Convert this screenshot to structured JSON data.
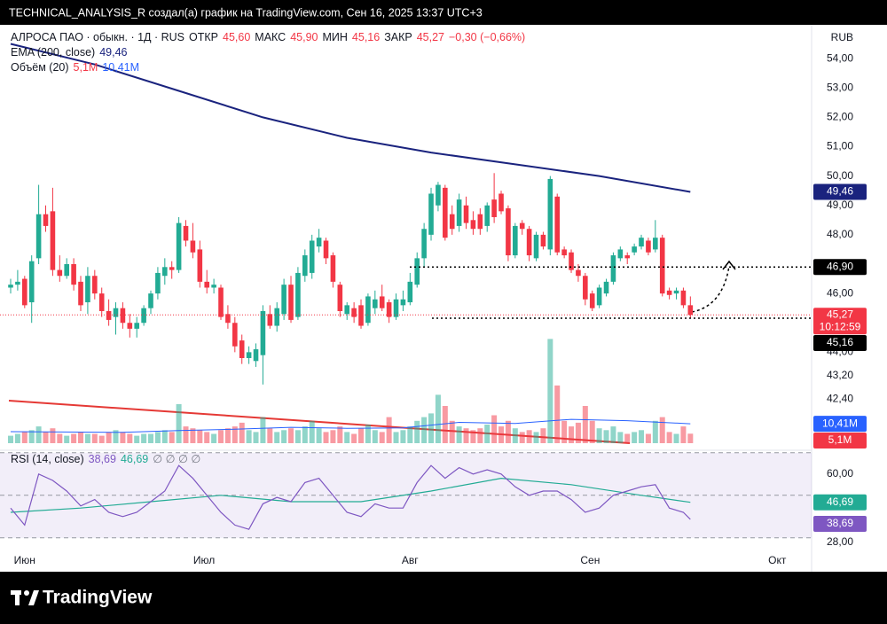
{
  "chart_data": {
    "type": "candlestick",
    "caption": "TECHNICAL_ANALYSIS_R создал(а) график на TradingView.com, Сен 16, 2025 13:37 UTC+3",
    "symbol": "АЛРОСА ПАО · обыкн. · 1Д · RUS",
    "open_label": "ОТКР",
    "open": "45,60",
    "high_label": "МАКС",
    "high": "45,90",
    "low_label": "МИН",
    "low": "45,16",
    "close_label": "ЗАКР",
    "close": "45,27",
    "change": "−0,30 (−0,66%)",
    "currency": "RUB",
    "countdown": "10:12:59",
    "brand": "TradingView",
    "colors": {
      "up": "#22ab94",
      "down": "#f23645",
      "ema": "#1a237e",
      "volume_ma": "#2962ff",
      "rsi": "#7e57c2",
      "rsi_ma": "#22ab94"
    },
    "xlim": [
      -1.52,
      114.3
    ],
    "xticks": [
      {
        "value": 2,
        "label": "Июн"
      },
      {
        "value": 27.6,
        "label": "Июл"
      },
      {
        "value": 57,
        "label": "Авг"
      },
      {
        "value": 82.7,
        "label": "Сен"
      },
      {
        "value": 109.4,
        "label": "Окт"
      }
    ],
    "ylim": [
      40.6,
      55.15
    ],
    "yticks": [
      {
        "value": 54,
        "label": "54,00"
      },
      {
        "value": 53,
        "label": "53,00"
      },
      {
        "value": 52,
        "label": "52,00"
      },
      {
        "value": 51,
        "label": "51,00"
      },
      {
        "value": 50,
        "label": "50,00"
      },
      {
        "value": 49,
        "label": "49,00"
      },
      {
        "value": 48,
        "label": "48,00"
      },
      {
        "value": 46,
        "label": "46,00"
      },
      {
        "value": 44,
        "label": "44,00"
      },
      {
        "value": 43.2,
        "label": "43,20"
      },
      {
        "value": 42.4,
        "label": "42,40"
      }
    ],
    "ohlc": [
      [
        46.2,
        46.5,
        46.0,
        46.3
      ],
      [
        46.3,
        46.8,
        46.1,
        46.4
      ],
      [
        46.5,
        46.6,
        45.5,
        45.6
      ],
      [
        45.7,
        47.3,
        45.0,
        47.1
      ],
      [
        47.2,
        49.7,
        47.0,
        48.7
      ],
      [
        48.7,
        49.0,
        48.1,
        48.3
      ],
      [
        48.8,
        49.6,
        46.6,
        46.8
      ],
      [
        46.8,
        47.3,
        46.4,
        46.6
      ],
      [
        46.6,
        47.2,
        46.5,
        47.0
      ],
      [
        47.0,
        47.2,
        46.1,
        46.3
      ],
      [
        46.4,
        46.6,
        45.4,
        45.6
      ],
      [
        45.7,
        46.9,
        45.3,
        46.6
      ],
      [
        46.6,
        46.8,
        45.8,
        46.0
      ],
      [
        46.0,
        46.2,
        45.2,
        45.4
      ],
      [
        45.4,
        45.8,
        44.9,
        45.1
      ],
      [
        45.2,
        45.7,
        44.6,
        45.5
      ],
      [
        45.5,
        45.7,
        44.8,
        45.0
      ],
      [
        45.0,
        45.3,
        44.5,
        44.8
      ],
      [
        44.8,
        45.2,
        44.5,
        45.0
      ],
      [
        45.0,
        45.6,
        44.9,
        45.5
      ],
      [
        45.5,
        46.1,
        45.3,
        46.0
      ],
      [
        46.0,
        46.9,
        45.8,
        46.7
      ],
      [
        46.6,
        47.2,
        46.3,
        46.9
      ],
      [
        46.9,
        47.1,
        46.5,
        46.8
      ],
      [
        46.8,
        48.6,
        46.7,
        48.4
      ],
      [
        48.3,
        48.5,
        47.6,
        47.8
      ],
      [
        47.8,
        48.4,
        47.2,
        47.4
      ],
      [
        47.5,
        47.8,
        46.2,
        46.4
      ],
      [
        46.4,
        46.8,
        46.0,
        46.2
      ],
      [
        46.2,
        46.5,
        46.0,
        46.3
      ],
      [
        46.2,
        46.3,
        45.1,
        45.2
      ],
      [
        45.3,
        45.6,
        44.8,
        45.0
      ],
      [
        45.0,
        45.2,
        44.0,
        44.2
      ],
      [
        44.4,
        44.6,
        43.6,
        43.8
      ],
      [
        43.8,
        44.2,
        43.6,
        44.0
      ],
      [
        43.7,
        44.3,
        43.5,
        44.1
      ],
      [
        43.9,
        45.6,
        42.9,
        45.4
      ],
      [
        45.3,
        45.6,
        44.8,
        44.9
      ],
      [
        44.9,
        45.7,
        44.7,
        45.5
      ],
      [
        45.3,
        46.5,
        45.1,
        46.3
      ],
      [
        46.3,
        46.6,
        45.0,
        45.1
      ],
      [
        45.2,
        46.9,
        45.1,
        46.7
      ],
      [
        46.6,
        47.5,
        46.4,
        47.3
      ],
      [
        46.7,
        48.0,
        46.5,
        47.8
      ],
      [
        47.6,
        48.2,
        47.4,
        47.9
      ],
      [
        47.8,
        47.9,
        47.0,
        47.2
      ],
      [
        47.3,
        47.4,
        46.2,
        46.4
      ],
      [
        46.3,
        46.4,
        45.2,
        45.4
      ],
      [
        45.3,
        45.7,
        45.1,
        45.6
      ],
      [
        45.5,
        45.7,
        45.0,
        45.2
      ],
      [
        45.6,
        45.8,
        44.8,
        44.9
      ],
      [
        45.0,
        46.0,
        44.9,
        45.9
      ],
      [
        45.5,
        46.1,
        45.3,
        45.8
      ],
      [
        45.9,
        46.3,
        45.4,
        45.5
      ],
      [
        45.7,
        45.8,
        45.0,
        45.2
      ],
      [
        45.2,
        46.0,
        45.1,
        45.8
      ],
      [
        45.6,
        46.1,
        45.4,
        45.8
      ],
      [
        45.7,
        46.7,
        45.6,
        46.4
      ],
      [
        46.3,
        47.4,
        46.2,
        47.2
      ],
      [
        47.2,
        48.4,
        46.9,
        48.2
      ],
      [
        48.0,
        49.6,
        47.8,
        49.4
      ],
      [
        49.0,
        49.8,
        48.8,
        49.7
      ],
      [
        49.6,
        49.7,
        47.8,
        47.9
      ],
      [
        48.7,
        49.0,
        48.0,
        48.2
      ],
      [
        48.3,
        49.4,
        48.1,
        49.2
      ],
      [
        49.0,
        49.3,
        48.2,
        48.4
      ],
      [
        48.5,
        48.8,
        48.0,
        48.2
      ],
      [
        48.7,
        48.9,
        48.0,
        48.2
      ],
      [
        48.3,
        49.1,
        48.1,
        49.0
      ],
      [
        49.2,
        50.1,
        48.4,
        48.6
      ],
      [
        49.4,
        49.5,
        48.7,
        48.8
      ],
      [
        48.9,
        49.0,
        47.1,
        47.3
      ],
      [
        47.3,
        48.4,
        47.2,
        48.3
      ],
      [
        48.4,
        48.5,
        48.0,
        48.2
      ],
      [
        48.2,
        48.3,
        47.1,
        47.3
      ],
      [
        47.2,
        48.1,
        47.1,
        48.0
      ],
      [
        48.0,
        48.1,
        47.5,
        47.6
      ],
      [
        47.5,
        50.0,
        47.3,
        49.9
      ],
      [
        49.3,
        49.4,
        47.3,
        47.4
      ],
      [
        47.5,
        47.6,
        47.2,
        47.3
      ],
      [
        47.4,
        47.5,
        46.7,
        46.8
      ],
      [
        46.8,
        47.0,
        46.4,
        46.6
      ],
      [
        46.6,
        46.7,
        45.6,
        45.8
      ],
      [
        46.0,
        46.1,
        45.4,
        45.5
      ],
      [
        45.6,
        46.3,
        45.5,
        46.2
      ],
      [
        46.0,
        46.5,
        45.9,
        46.4
      ],
      [
        46.4,
        47.4,
        46.3,
        47.3
      ],
      [
        47.2,
        47.6,
        47.1,
        47.5
      ],
      [
        47.3,
        47.4,
        47.0,
        47.2
      ],
      [
        47.4,
        47.7,
        47.3,
        47.6
      ],
      [
        47.6,
        48.0,
        47.5,
        47.9
      ],
      [
        47.8,
        47.9,
        47.3,
        47.4
      ],
      [
        47.5,
        48.5,
        47.4,
        47.9
      ],
      [
        47.9,
        48.0,
        45.9,
        46.0
      ],
      [
        46.1,
        46.2,
        45.8,
        45.95
      ],
      [
        46.0,
        46.2,
        45.8,
        46.1
      ],
      [
        46.1,
        46.2,
        45.5,
        45.6
      ],
      [
        45.6,
        45.9,
        45.16,
        45.27
      ]
    ],
    "ema": {
      "name": "EMA (200, close)",
      "value_label": "49,46",
      "x": [
        0,
        12,
        24,
        36,
        48,
        60,
        72,
        84,
        97
      ],
      "values": [
        54.5,
        53.8,
        52.9,
        52.0,
        51.3,
        50.8,
        50.4,
        50.0,
        49.46
      ]
    },
    "levels": [
      {
        "value": 46.9,
        "label": "46,90"
      },
      {
        "value": 45.16,
        "label": "45,16"
      }
    ],
    "volume": {
      "name": "Объём (20)",
      "value_label": "5,1M",
      "values": [
        4,
        5,
        6,
        7,
        9,
        6,
        8,
        5,
        4,
        5,
        6,
        5,
        5,
        4,
        6,
        7,
        6,
        5,
        4,
        5,
        5,
        6,
        7,
        6,
        21,
        9,
        8,
        7,
        6,
        5,
        7,
        8,
        9,
        11,
        7,
        6,
        14,
        8,
        6,
        7,
        8,
        7,
        9,
        12,
        8,
        6,
        7,
        9,
        6,
        5,
        8,
        10,
        7,
        6,
        14,
        6,
        7,
        9,
        12,
        14,
        16,
        26,
        20,
        12,
        9,
        8,
        7,
        8,
        10,
        15,
        9,
        12,
        8,
        6,
        7,
        6,
        8,
        56,
        31,
        12,
        9,
        11,
        20,
        12,
        8,
        7,
        9,
        6,
        5,
        6,
        7,
        5,
        12,
        14,
        6,
        5,
        9,
        5.1
      ]
    },
    "volume_ma": {
      "value_label": "10,41M",
      "x": [
        0,
        8,
        16,
        24,
        32,
        40,
        48,
        56,
        64,
        72,
        80,
        88,
        97
      ],
      "values": [
        6.2,
        6.0,
        5.8,
        6.8,
        7.5,
        8.5,
        8.0,
        8.2,
        11.2,
        10.6,
        12.8,
        12.1,
        10.41
      ]
    },
    "rsi": {
      "name": "RSI (14, close)",
      "value_label": "38,69",
      "ma_value_label": "46,69",
      "icons": "∅ ∅ ∅ ∅",
      "ylim": [
        22,
        72
      ],
      "yticks": [
        {
          "value": 60,
          "label": "60,00"
        },
        {
          "value": 28,
          "label": "28,00"
        }
      ],
      "bands": [
        70,
        50,
        30
      ],
      "x": [
        0,
        2,
        4,
        6,
        8,
        10,
        12,
        14,
        16,
        18,
        20,
        22,
        24,
        26,
        28,
        30,
        32,
        34,
        36,
        38,
        40,
        42,
        44,
        46,
        48,
        50,
        52,
        54,
        56,
        58,
        60,
        62,
        64,
        66,
        68,
        70,
        72,
        74,
        76,
        78,
        80,
        82,
        84,
        86,
        88,
        90,
        92,
        94,
        96,
        97
      ],
      "values": [
        44,
        36,
        60,
        57,
        52,
        45,
        48,
        42,
        40,
        42,
        47,
        52,
        64,
        58,
        50,
        42,
        36,
        34,
        46,
        49,
        47,
        56,
        58,
        50,
        42,
        40,
        46,
        44,
        44,
        56,
        64,
        58,
        63,
        60,
        62,
        60,
        54,
        50,
        52,
        52,
        48,
        42,
        44,
        50,
        52,
        54,
        55,
        44,
        42,
        38.69
      ],
      "ma_x": [
        0,
        10,
        20,
        30,
        40,
        50,
        60,
        70,
        80,
        90,
        97
      ],
      "ma_values": [
        42,
        44,
        47,
        50,
        47,
        47,
        52,
        58,
        55,
        50,
        46.69
      ]
    }
  }
}
